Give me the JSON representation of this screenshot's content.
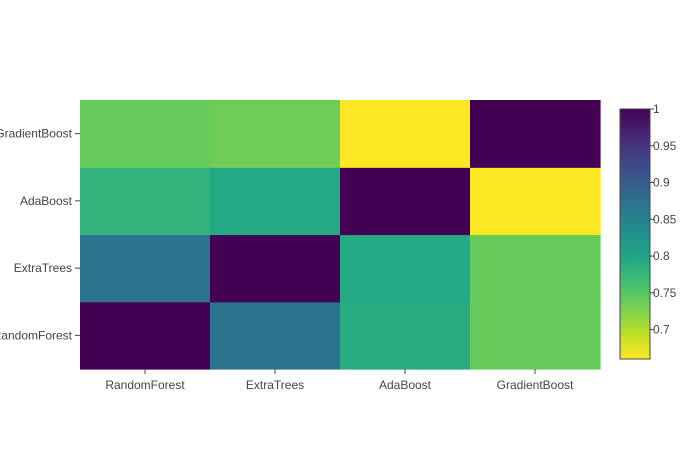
{
  "chart_data": {
    "type": "heatmap",
    "title": "",
    "xlabel": "",
    "ylabel": "",
    "x_categories": [
      "RandomForest",
      "ExtraTrees",
      "AdaBoost",
      "GradientBoost"
    ],
    "y_categories": [
      "RandomForest",
      "ExtraTrees",
      "AdaBoost",
      "GradientBoost"
    ],
    "y_tick_labels": [
      "RandomForest",
      "ExtraTrees",
      "AdaBoost",
      "GradientBoost"
    ],
    "values": [
      [
        1.0,
        0.87,
        0.79,
        0.74
      ],
      [
        0.87,
        1.0,
        0.795,
        0.74
      ],
      [
        0.78,
        0.795,
        1.0,
        0.66
      ],
      [
        0.74,
        0.735,
        0.66,
        1.0
      ]
    ],
    "colorscale": "Viridis",
    "reversescale": true,
    "zmin": 0.66,
    "zmax": 1.0,
    "colorbar": {
      "position": "right",
      "tick_values": [
        1,
        0.95,
        0.9,
        0.85,
        0.8,
        0.75,
        0.7
      ],
      "tick_labels": [
        "1",
        "0.95",
        "0.9",
        "0.85",
        "0.8",
        "0.75",
        "0.7"
      ]
    },
    "grid": false,
    "legend": "none"
  }
}
